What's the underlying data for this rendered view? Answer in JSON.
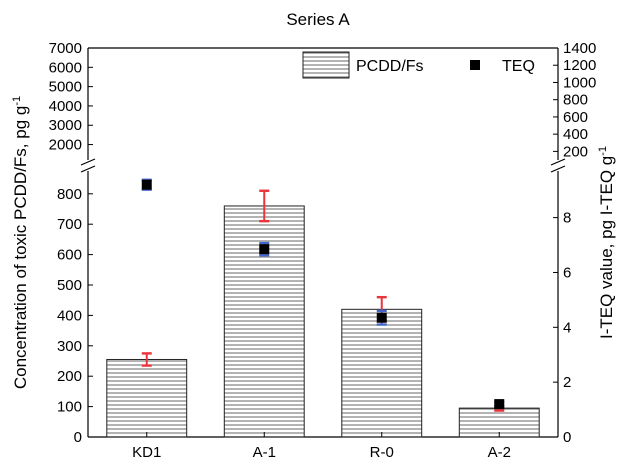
{
  "chart_data": {
    "type": "bar",
    "title": "Series A",
    "xlabel": "",
    "ylabel_left": "Concentration of toxic PCDD/Fs, pg g",
    "ylabel_left_sup": "-1",
    "ylabel_right": "I-TEQ value, pg I-TEQ g",
    "ylabel_right_sup": "-1",
    "categories": [
      "KD1",
      "A-1",
      "R-0",
      "A-2"
    ],
    "series": [
      {
        "name": "PCDD/Fs",
        "axis": "left",
        "values": [
          255,
          760,
          420,
          95
        ],
        "errors": [
          20,
          50,
          40,
          8
        ],
        "error_color": "#e8343a"
      },
      {
        "name": "TEQ",
        "axis": "right",
        "values": [
          9.2,
          6.85,
          4.35,
          1.2
        ],
        "errors": [
          0.18,
          0.22,
          0.25,
          0.08
        ],
        "error_color": "#4466cc"
      }
    ],
    "left_axis": {
      "lower_ylim": [
        0,
        875
      ],
      "lower_ticks": [
        0,
        100,
        200,
        300,
        400,
        500,
        600,
        700,
        800
      ],
      "upper_ylim": [
        1200,
        7000
      ],
      "upper_ticks": [
        2000,
        3000,
        4000,
        5000,
        6000,
        7000
      ],
      "break": true
    },
    "right_axis": {
      "lower_ylim": [
        0,
        9.7
      ],
      "lower_ticks": [
        0,
        2,
        4,
        6,
        8
      ],
      "upper_ylim": [
        100,
        1400
      ],
      "upper_ticks": [
        200,
        400,
        600,
        800,
        1000,
        1200,
        1400
      ],
      "break": true
    },
    "legend": {
      "position": "top-right"
    },
    "grid": false
  }
}
